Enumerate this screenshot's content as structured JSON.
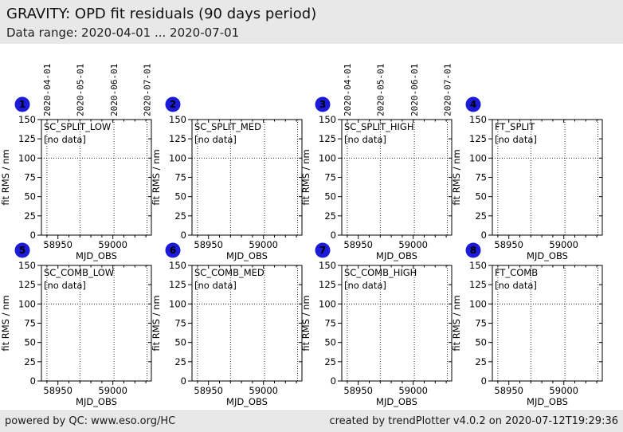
{
  "header": {
    "title": "GRAVITY: OPD fit residuals (90 days period)",
    "subtitle": "Data range: 2020-04-01 ... 2020-07-01"
  },
  "footer": {
    "left": "powered by QC: www.eso.org/HC",
    "right": "created by trendPlotter v4.0.2 on 2020-07-12T19:29:36"
  },
  "colors": {
    "badge_blue": "#1b1bd8",
    "badge_text": "#ffffff",
    "no_data_blue": "#0000ff",
    "text_black": "#000000",
    "panel_gray": "#e8e8e8"
  },
  "chart_data": {
    "type": "scatter",
    "layout": "2 rows x 4 cols, all panels empty (no data points)",
    "shared": {
      "xlabel": "MJD_OBS",
      "ylabel": "fit RMS / nm",
      "xlim": [
        58935,
        59035
      ],
      "ylim": [
        0,
        150
      ],
      "xticks": [
        58950,
        59000
      ],
      "yticks": [
        0,
        25,
        50,
        75,
        100,
        125,
        150
      ],
      "x_minor_step": 10,
      "hline_y": 100,
      "grid": "dotted vertical lines at month starts; dotted horizontal line at y=100",
      "date_gridlines": [
        {
          "label": "2020-04-01",
          "mjd": 58940
        },
        {
          "label": "2020-05-01",
          "mjd": 58970
        },
        {
          "label": "2020-06-01",
          "mjd": 59001
        },
        {
          "label": "2020-07-01",
          "mjd": 59031
        }
      ]
    },
    "subplots": [
      {
        "badge": "1",
        "title": "SC_SPLIT_LOW",
        "annotation": "[no data]",
        "annotation_color": "#000000",
        "show_top_dates": true,
        "x": [],
        "y": []
      },
      {
        "badge": "2",
        "title": "SC_SPLIT_MED",
        "annotation": "[no data]",
        "annotation_color": "#000000",
        "show_top_dates": false,
        "x": [],
        "y": []
      },
      {
        "badge": "3",
        "title": "SC_SPLIT_HIGH",
        "annotation": "[no data]",
        "annotation_color": "#000000",
        "show_top_dates": true,
        "x": [],
        "y": []
      },
      {
        "badge": "4",
        "title": "FT_SPLIT",
        "annotation": "[no data]",
        "annotation_color": "#000000",
        "show_top_dates": false,
        "x": [],
        "y": []
      },
      {
        "badge": "5",
        "title": "SC_COMB_LOW",
        "annotation": "[no data]",
        "annotation_color": "#0000ff",
        "show_top_dates": false,
        "x": [],
        "y": []
      },
      {
        "badge": "6",
        "title": "SC_COMB_MED",
        "annotation": "[no data]",
        "annotation_color": "#0000ff",
        "show_top_dates": false,
        "x": [],
        "y": []
      },
      {
        "badge": "7",
        "title": "SC_COMB_HIGH",
        "annotation": "[no data]",
        "annotation_color": "#0000ff",
        "show_top_dates": false,
        "x": [],
        "y": []
      },
      {
        "badge": "8",
        "title": "FT_COMB",
        "annotation": "[no data]",
        "annotation_color": "#0000ff",
        "show_top_dates": false,
        "x": [],
        "y": []
      }
    ]
  }
}
